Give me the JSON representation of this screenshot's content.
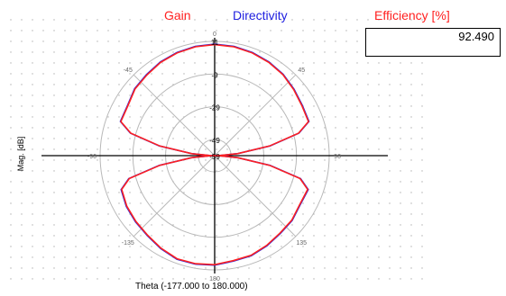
{
  "legend": {
    "gain": "Gain",
    "directivity": "Directivity",
    "gain_color": "#ff2020",
    "directivity_color": "#2020e0"
  },
  "efficiency": {
    "title": "Efficiency [%]",
    "value": "92.490"
  },
  "axes": {
    "ylabel": "Mag. [dB]",
    "xlabel": "Theta (-177.000 to 180.000)"
  },
  "chart_data": {
    "type": "polar",
    "theta_range": [
      -177,
      180
    ],
    "r_range_db": [
      -59,
      11
    ],
    "radial_ticks": [
      "11",
      "-9",
      "-29",
      "-49",
      "-59"
    ],
    "angle_ticks": [
      {
        "angle": 0,
        "label": "0"
      },
      {
        "angle": 90,
        "label": "90"
      },
      {
        "angle": 180,
        "label": "180"
      },
      {
        "angle": -90,
        "label": "-90"
      },
      {
        "angle": 45,
        "label": "45"
      },
      {
        "angle": 135,
        "label": "135"
      },
      {
        "angle": -135,
        "label": "-135"
      },
      {
        "angle": -45,
        "label": "-45"
      }
    ],
    "grid": true,
    "series": [
      {
        "name": "Gain",
        "color": "#ff2020",
        "points": [
          [
            0,
            9
          ],
          [
            10,
            8.7
          ],
          [
            20,
            8
          ],
          [
            30,
            7
          ],
          [
            40,
            5.8
          ],
          [
            50,
            4
          ],
          [
            60,
            2.5
          ],
          [
            70,
            2
          ],
          [
            75,
            -6
          ],
          [
            80,
            -25
          ],
          [
            85,
            -45
          ],
          [
            88,
            -56
          ],
          [
            90,
            -59
          ],
          [
            92,
            -56
          ],
          [
            95,
            -45
          ],
          [
            100,
            -25
          ],
          [
            105,
            -5
          ],
          [
            110,
            1.5
          ],
          [
            120,
            1
          ],
          [
            130,
            2.5
          ],
          [
            140,
            3
          ],
          [
            150,
            4.5
          ],
          [
            160,
            6
          ],
          [
            170,
            6.3
          ],
          [
            180,
            7.8
          ],
          [
            -170,
            8.2
          ],
          [
            -160,
            8.2
          ],
          [
            -150,
            6.5
          ],
          [
            -140,
            4.7
          ],
          [
            -130,
            3.8
          ],
          [
            -120,
            3
          ],
          [
            -110,
            1.5
          ],
          [
            -105,
            -5
          ],
          [
            -100,
            -25
          ],
          [
            -95,
            -45
          ],
          [
            -92,
            -56
          ],
          [
            -90,
            -59
          ],
          [
            -88,
            -56
          ],
          [
            -85,
            -45
          ],
          [
            -80,
            -25
          ],
          [
            -75,
            -6
          ],
          [
            -70,
            2
          ],
          [
            -60,
            2.2
          ],
          [
            -50,
            4.5
          ],
          [
            -40,
            5.5
          ],
          [
            -30,
            7
          ],
          [
            -20,
            8
          ],
          [
            -10,
            8.7
          ]
        ]
      },
      {
        "name": "Directivity",
        "color": "#2020e0",
        "points": [
          [
            0,
            9.3
          ],
          [
            10,
            9
          ],
          [
            20,
            8.3
          ],
          [
            30,
            7.3
          ],
          [
            40,
            6.1
          ],
          [
            50,
            4.3
          ],
          [
            60,
            2.8
          ],
          [
            70,
            2.3
          ],
          [
            75,
            -5.7
          ],
          [
            80,
            -24.7
          ],
          [
            85,
            -44.7
          ],
          [
            88,
            -55.7
          ],
          [
            90,
            -58.7
          ],
          [
            92,
            -55.7
          ],
          [
            95,
            -44.7
          ],
          [
            100,
            -24.7
          ],
          [
            105,
            -4.7
          ],
          [
            110,
            1.8
          ],
          [
            120,
            1.3
          ],
          [
            130,
            2.8
          ],
          [
            140,
            3.3
          ],
          [
            150,
            4.8
          ],
          [
            160,
            6.3
          ],
          [
            170,
            6.6
          ],
          [
            180,
            8.1
          ],
          [
            -170,
            8.5
          ],
          [
            -160,
            8.5
          ],
          [
            -150,
            6.8
          ],
          [
            -140,
            5
          ],
          [
            -130,
            4.1
          ],
          [
            -120,
            3.3
          ],
          [
            -110,
            1.8
          ],
          [
            -105,
            -4.7
          ],
          [
            -100,
            -24.7
          ],
          [
            -95,
            -44.7
          ],
          [
            -92,
            -55.7
          ],
          [
            -90,
            -58.7
          ],
          [
            -88,
            -55.7
          ],
          [
            -85,
            -44.7
          ],
          [
            -80,
            -24.7
          ],
          [
            -75,
            -5.7
          ],
          [
            -70,
            2.3
          ],
          [
            -60,
            2.5
          ],
          [
            -50,
            4.8
          ],
          [
            -40,
            5.8
          ],
          [
            -30,
            7.3
          ],
          [
            -20,
            8.3
          ],
          [
            -10,
            9
          ]
        ]
      }
    ]
  }
}
